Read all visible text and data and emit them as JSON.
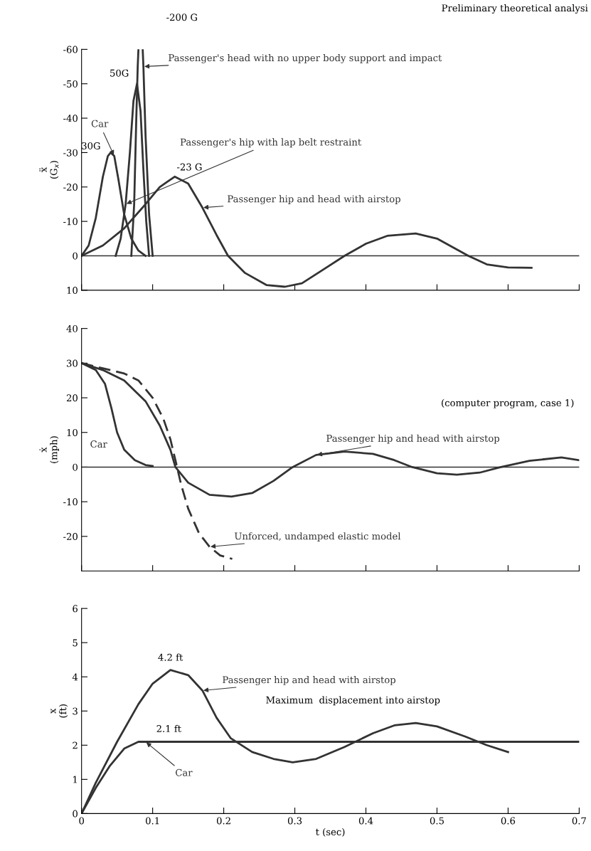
{
  "chart_data": [
    {
      "type": "line",
      "title": "Preliminary theoretical analysi",
      "ylabel": "ẍ\n(G$_{x}$)",
      "xlim": [
        0,
        0.7
      ],
      "xticks": [
        0,
        0.1,
        0.2,
        0.3,
        0.4,
        0.5,
        0.6,
        0.7
      ],
      "ylim": [
        10,
        -60
      ],
      "yticks": [
        10,
        0,
        -10,
        -20,
        -30,
        -40,
        -50,
        -60
      ],
      "tick_labels": "y",
      "grid": false,
      "legend": false,
      "marker": "none",
      "line_style": "solid",
      "series": [
        {
          "name": "Car",
          "color": "#333333",
          "x": [
            0,
            0.01,
            0.02,
            0.03,
            0.037,
            0.041,
            0.046,
            0.052,
            0.06,
            0.07,
            0.08,
            0.09
          ],
          "values": [
            0,
            -3,
            -11,
            -23,
            -29,
            -30,
            -29,
            -22,
            -12,
            -5,
            -1.5,
            0
          ]
        },
        {
          "name": "Passenger's hip with lap belt restraint",
          "color": "#333333",
          "x": [
            0.048,
            0.055,
            0.062,
            0.068,
            0.073,
            0.078,
            0.083,
            0.087,
            0.091,
            0.095
          ],
          "values": [
            0,
            -5,
            -15,
            -30,
            -45,
            -50,
            -42,
            -25,
            -10,
            0
          ]
        },
        {
          "name": "Passenger's head with no upper body support and impact",
          "color": "#333333",
          "x": [
            0.07,
            0.074,
            0.077,
            0.079,
            0.08,
            0.083,
            0.086,
            0.087,
            0.09,
            0.095,
            0.1
          ],
          "values": [
            0,
            -15,
            -40,
            -55,
            -60,
            null,
            -60,
            -55,
            -35,
            -12,
            0
          ]
        },
        {
          "name": "Passenger hip and head with airstop",
          "color": "#333333",
          "x": [
            0,
            0.03,
            0.06,
            0.09,
            0.11,
            0.131,
            0.15,
            0.17,
            0.19,
            0.206,
            0.23,
            0.26,
            0.286,
            0.31,
            0.34,
            0.37,
            0.4,
            0.43,
            0.47,
            0.5,
            0.544,
            0.57,
            0.6,
            0.633
          ],
          "values": [
            0,
            -3,
            -8,
            -15,
            -20,
            -23,
            -21,
            -14,
            -6,
            0,
            5,
            8.5,
            9,
            8,
            4,
            0,
            -3.5,
            -5.8,
            -6.5,
            -5,
            0,
            2.5,
            3.4,
            3.5
          ]
        }
      ],
      "ref_lines": [
        {
          "axis": "y",
          "value": 0,
          "color": "#333333"
        }
      ],
      "annotations": [
        {
          "text": "30G",
          "x": 0.041,
          "y": -30
        },
        {
          "text": "50G",
          "x": 0.078,
          "y": -50
        },
        "-200 G",
        {
          "text": "-23 G",
          "x": 0.131,
          "y": -23
        }
      ]
    },
    {
      "type": "line",
      "ylabel": "ẋ\n(mph)",
      "xlim": [
        0,
        0.7
      ],
      "xticks": [
        0,
        0.1,
        0.2,
        0.3,
        0.4,
        0.5,
        0.6,
        0.7
      ],
      "ylim": [
        -30,
        40
      ],
      "yticks": [
        -20,
        -10,
        0,
        10,
        20,
        30,
        40
      ],
      "tick_labels": "y",
      "grid": false,
      "legend": false,
      "marker": "none",
      "series": [
        {
          "name": "Car",
          "color": "#333333",
          "line_style": "solid",
          "x": [
            0,
            0.02,
            0.033,
            0.042,
            0.05,
            0.06,
            0.075,
            0.09,
            0.1
          ],
          "values": [
            30,
            28,
            24,
            17,
            10,
            5,
            2,
            0.6,
            0.3
          ]
        },
        {
          "name": "Passenger hip and head with airstop",
          "color": "#333333",
          "line_style": "solid",
          "x": [
            0,
            0.03,
            0.06,
            0.09,
            0.11,
            0.125,
            0.132,
            0.15,
            0.18,
            0.211,
            0.24,
            0.27,
            0.297,
            0.33,
            0.37,
            0.41,
            0.44,
            0.465,
            0.5,
            0.528,
            0.56,
            0.59,
            0.63,
            0.675,
            0.7
          ],
          "values": [
            30,
            28,
            25,
            19,
            12,
            5,
            0,
            -4.5,
            -8,
            -8.5,
            -7.5,
            -4,
            0,
            3.5,
            4.5,
            3.8,
            2,
            0,
            -1.8,
            -2.2,
            -1.6,
            0,
            1.8,
            2.8,
            2
          ]
        },
        {
          "name": "Unforced, undamped elastic model",
          "color": "#333333",
          "line_style": "dashed",
          "x": [
            0,
            0.03,
            0.06,
            0.08,
            0.1,
            0.115,
            0.125,
            0.132,
            0.14,
            0.15,
            0.165,
            0.18,
            0.195,
            0.212
          ],
          "values": [
            30,
            28.5,
            27,
            25,
            20,
            14,
            8,
            2,
            -5,
            -12,
            -19,
            -23,
            -25.5,
            -26.5
          ]
        }
      ],
      "ref_lines": [
        {
          "axis": "y",
          "value": 0,
          "color": "#333333"
        }
      ],
      "annotations": [
        "(computer program, case 1)"
      ]
    },
    {
      "type": "line",
      "xlabel": "t (sec)",
      "ylabel": "x\n(ft)",
      "xlim": [
        0,
        0.7
      ],
      "xticks": [
        0,
        0.1,
        0.2,
        0.3,
        0.4,
        0.5,
        0.6,
        0.7
      ],
      "ylim": [
        0,
        6
      ],
      "yticks": [
        0,
        1,
        2,
        3,
        4,
        5,
        6
      ],
      "grid": false,
      "legend": false,
      "marker": "none",
      "line_style": "solid",
      "series": [
        {
          "name": "Passenger hip and head with airstop",
          "color": "#333333",
          "x": [
            0,
            0.02,
            0.05,
            0.08,
            0.1,
            0.125,
            0.15,
            0.17,
            0.19,
            0.21,
            0.24,
            0.27,
            0.297,
            0.33,
            0.37,
            0.41,
            0.44,
            0.47,
            0.5,
            0.54,
            0.57,
            0.6
          ],
          "values": [
            0,
            0.9,
            2.1,
            3.2,
            3.8,
            4.2,
            4.05,
            3.6,
            2.8,
            2.2,
            1.8,
            1.6,
            1.5,
            1.6,
            1.95,
            2.35,
            2.58,
            2.65,
            2.55,
            2.25,
            2.0,
            1.8
          ]
        },
        {
          "name": "Car",
          "color": "#333333",
          "x": [
            0,
            0.02,
            0.04,
            0.06,
            0.08,
            0.09,
            0.7
          ],
          "values": [
            0,
            0.75,
            1.4,
            1.9,
            2.1,
            2.1,
            2.1
          ]
        }
      ],
      "annotations": [
        {
          "text": "4.2 ft",
          "x": 0.125,
          "y": 4.2
        },
        "2.1 ft",
        "Maximum  displacement into airstop"
      ]
    }
  ]
}
